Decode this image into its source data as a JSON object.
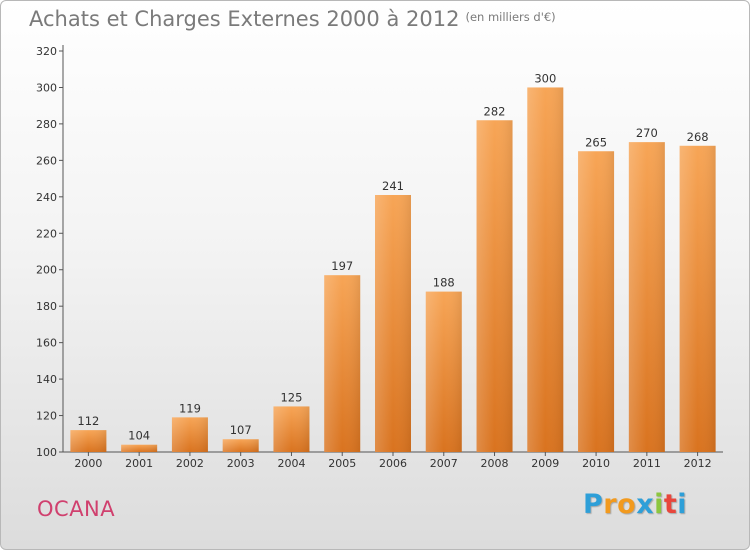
{
  "chart_data": {
    "type": "bar",
    "title": "Achats et Charges Externes 2000 à 2012",
    "subtitle": "(en milliers d'€)",
    "xlabel": "",
    "ylabel": "",
    "categories": [
      "2000",
      "2001",
      "2002",
      "2003",
      "2004",
      "2005",
      "2006",
      "2007",
      "2008",
      "2009",
      "2010",
      "2011",
      "2012"
    ],
    "values": [
      112,
      104,
      119,
      107,
      125,
      197,
      241,
      188,
      282,
      300,
      265,
      270,
      268
    ],
    "ylim": [
      100,
      320
    ],
    "yticks": [
      100,
      120,
      140,
      160,
      180,
      200,
      220,
      240,
      260,
      280,
      300,
      320
    ],
    "grid": false,
    "legend": "none",
    "bar_color_top": "#f7a556",
    "bar_color_bottom": "#d9731f"
  },
  "footer": {
    "commune": "OCANA",
    "commune_color": "#d0406e"
  },
  "logo": {
    "letters": [
      "P",
      "r",
      "o",
      "x",
      "i",
      "t",
      "i"
    ],
    "colors": [
      "#2e9fd8",
      "#f29a1e",
      "#f29a1e",
      "#2e9fd8",
      "#8cc63f",
      "#e8463c",
      "#2e9fd8"
    ]
  }
}
